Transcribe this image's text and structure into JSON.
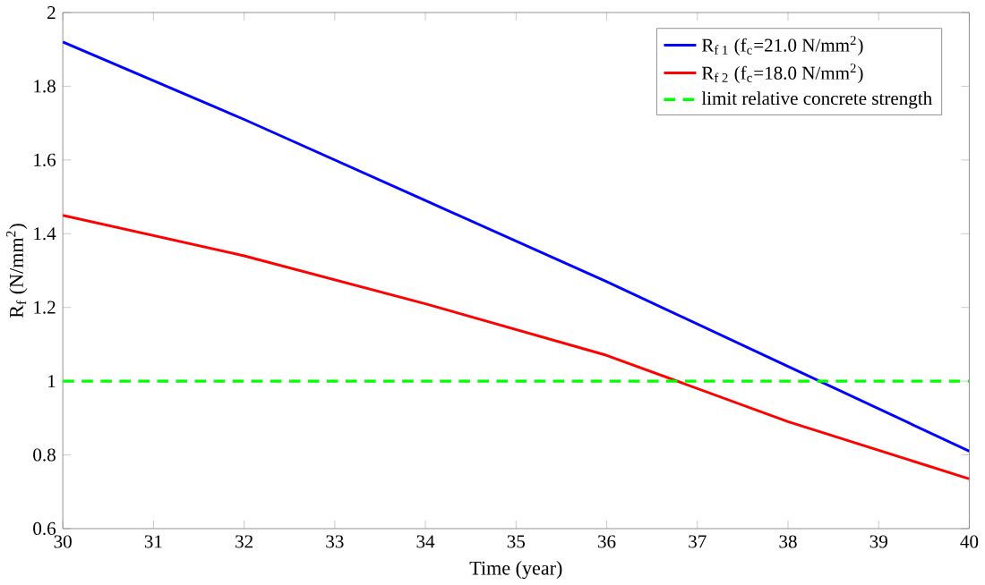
{
  "chart_data": {
    "type": "line",
    "xlabel": "Time (year)",
    "ylabel": "R$_{f}$ (N/mm$^{2}$)",
    "xlim": [
      30,
      40
    ],
    "ylim": [
      0.6,
      2
    ],
    "xticks": [
      30,
      31,
      32,
      33,
      34,
      35,
      36,
      37,
      38,
      39,
      40
    ],
    "yticks": [
      0.6,
      0.8,
      1,
      1.2,
      1.4,
      1.6,
      1.8,
      2
    ],
    "series": [
      {
        "name": "R$_{f 1}$ (f$_{c}$=21.0 N/mm$^{2}$)",
        "color": "#0000ff",
        "x": [
          30,
          32,
          34,
          36,
          38,
          40
        ],
        "values": [
          1.92,
          1.71,
          1.49,
          1.27,
          1.04,
          0.81
        ]
      },
      {
        "name": "R$_{f 2}$ (f$_{c}$=18.0 N/mm$^{2}$)",
        "color": "#ff0000",
        "x": [
          30,
          32,
          34,
          36,
          38,
          40
        ],
        "values": [
          1.45,
          1.34,
          1.21,
          1.07,
          0.89,
          0.735
        ]
      }
    ],
    "ref_lines": [
      {
        "axis": "y",
        "value": 1,
        "label": "limit relative concrete strength",
        "color": "#00ff00",
        "line_style": "dashed"
      }
    ],
    "legend": "top right",
    "grid": false,
    "line_style": "solid"
  }
}
